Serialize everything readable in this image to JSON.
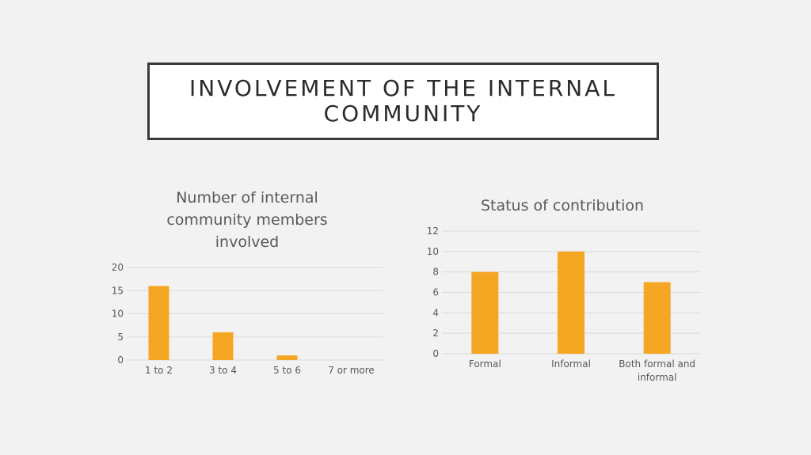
{
  "slide": {
    "title": "INVOLVEMENT OF THE INTERNAL COMMUNITY"
  },
  "colors": {
    "bar": "#f5a623",
    "grid": "#d9d9d9",
    "text": "#595959"
  },
  "chart_data": [
    {
      "type": "bar",
      "title": "Number of internal community members involved",
      "categories": [
        "1 to 2",
        "3 to 4",
        "5 to 6",
        "7 or more"
      ],
      "values": [
        16,
        6,
        1,
        0
      ],
      "ylim": [
        0,
        20
      ],
      "yticks": [
        0,
        5,
        10,
        15,
        20
      ],
      "grid": true,
      "legend": "none"
    },
    {
      "type": "bar",
      "title": "Status of contribution",
      "categories": [
        "Formal",
        "Informal",
        "Both formal and informal"
      ],
      "values": [
        8,
        10,
        7
      ],
      "ylim": [
        0,
        12
      ],
      "yticks": [
        0,
        2,
        4,
        6,
        8,
        10,
        12
      ],
      "grid": true,
      "legend": "none"
    }
  ]
}
